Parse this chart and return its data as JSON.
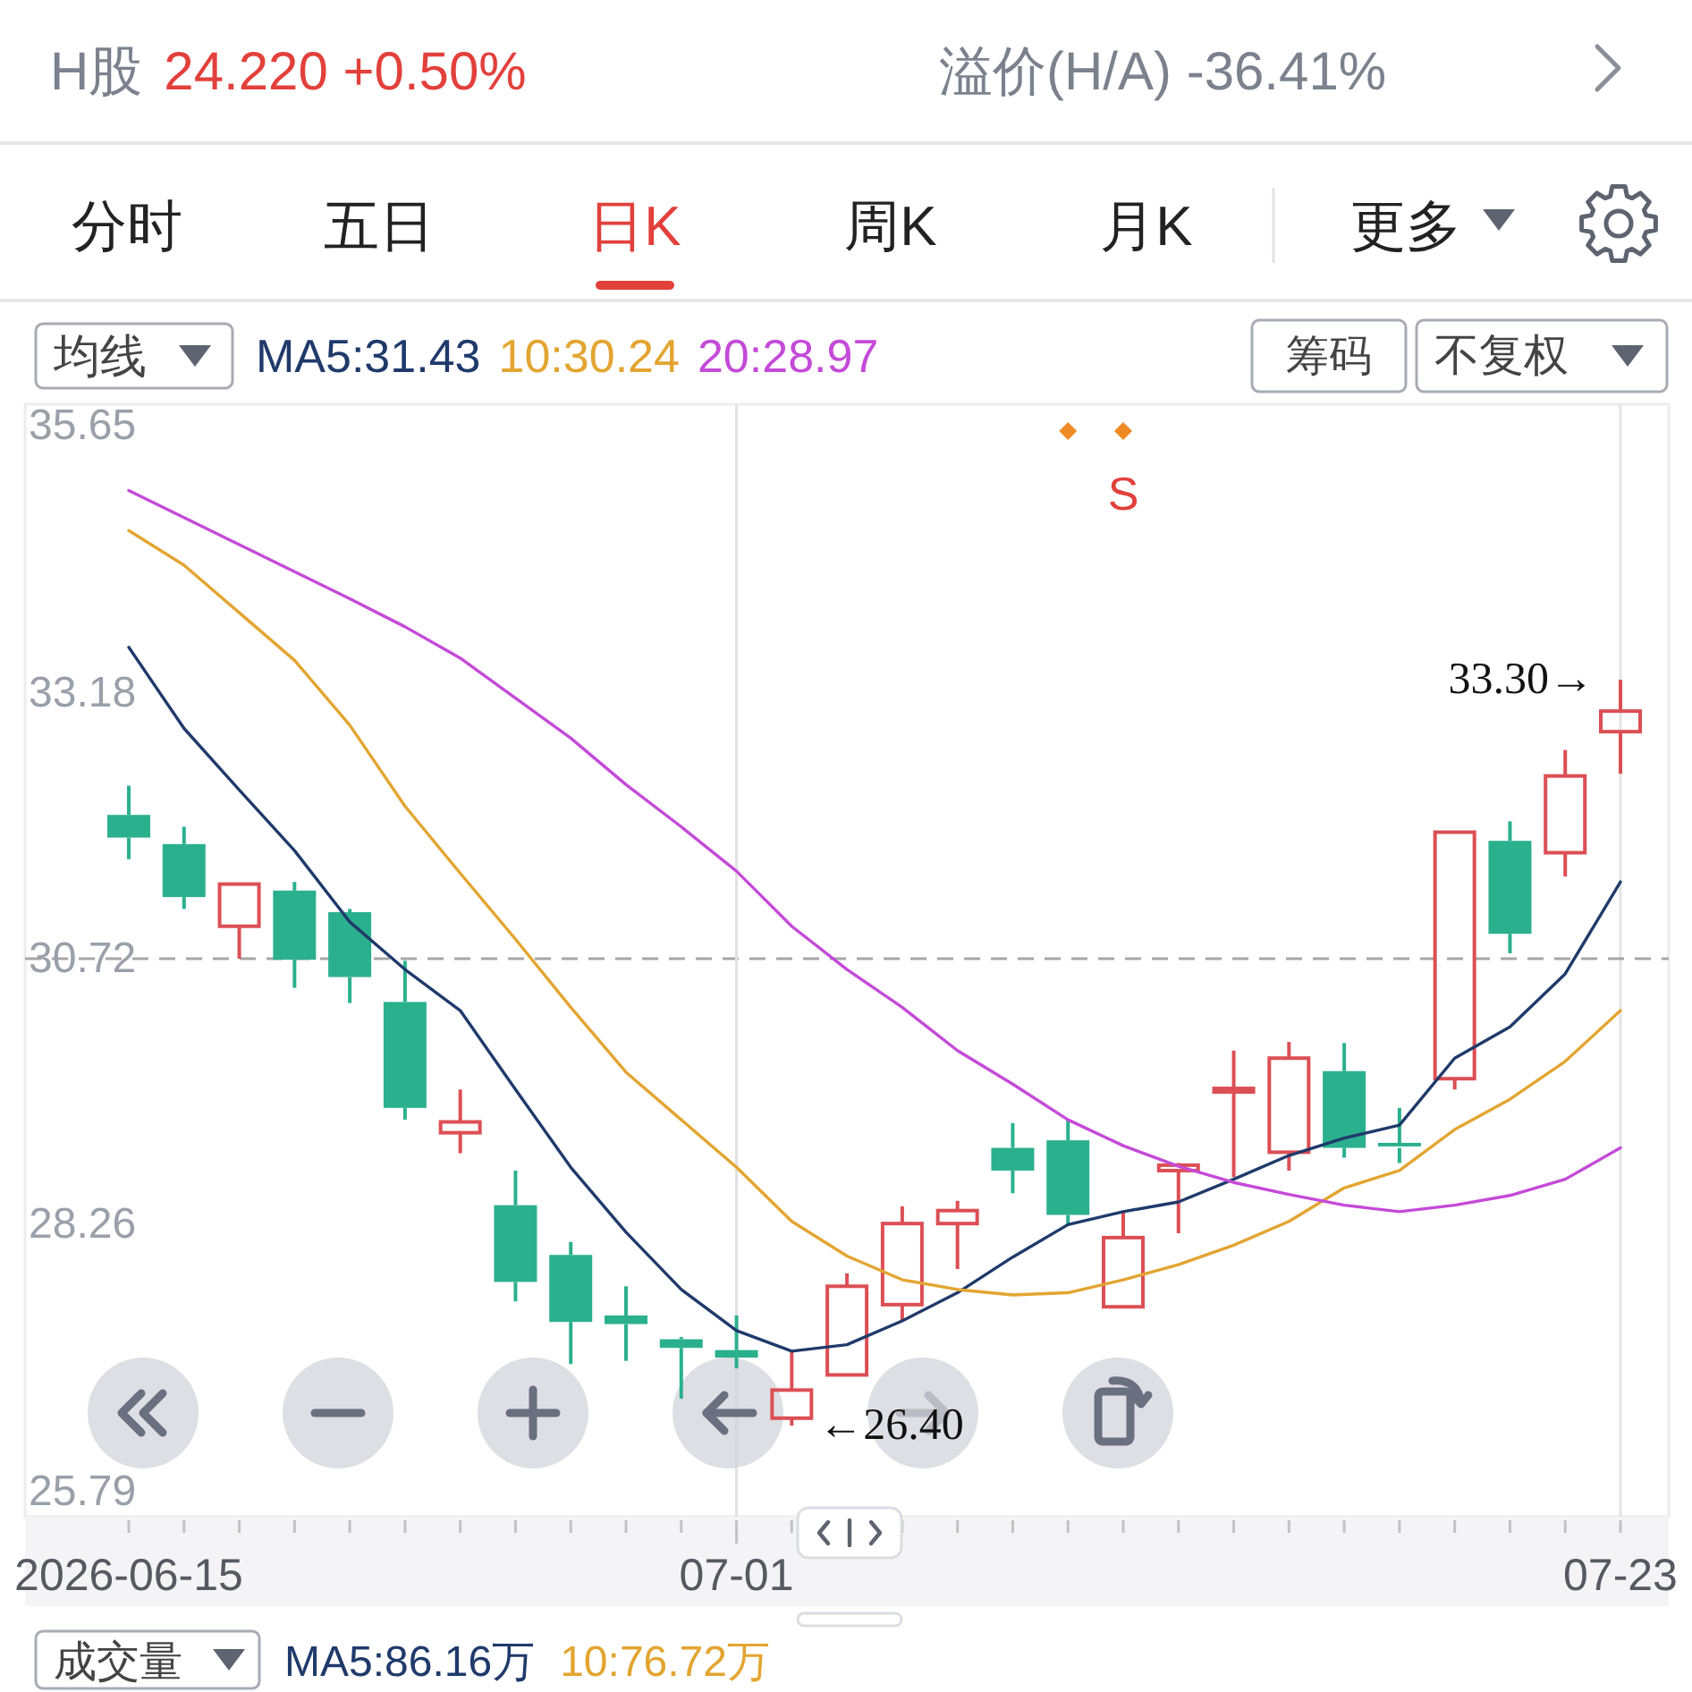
{
  "chart_data": {
    "type": "candlestick",
    "title": "H股",
    "subtitle": "24.220 +0.50%",
    "legend_title": "均线",
    "legend": "top left",
    "categories": [
      "2026-06-15",
      null,
      null,
      null,
      null,
      null,
      null,
      null,
      null,
      null,
      null,
      "07-01",
      null,
      null,
      null,
      null,
      null,
      null,
      null,
      null,
      null,
      null,
      null,
      null,
      null,
      null,
      null,
      "07-23"
    ],
    "ohlc": [
      [
        32.05,
        32.32,
        31.64,
        31.84
      ],
      [
        31.78,
        31.94,
        31.18,
        31.29
      ],
      [
        31.02,
        31.41,
        30.72,
        31.41
      ],
      [
        31.35,
        31.43,
        30.45,
        30.71
      ],
      [
        31.15,
        31.18,
        30.31,
        30.55
      ],
      [
        30.32,
        30.7,
        29.23,
        29.34
      ],
      [
        29.11,
        29.51,
        28.92,
        29.21
      ],
      [
        28.44,
        28.76,
        27.55,
        27.73
      ],
      [
        27.98,
        28.1,
        26.97,
        27.36
      ],
      [
        27.42,
        27.69,
        27.0,
        27.34
      ],
      [
        27.2,
        27.22,
        26.65,
        27.12
      ],
      [
        27.1,
        27.42,
        26.93,
        27.03
      ],
      [
        26.47,
        27.09,
        26.4,
        26.73
      ],
      [
        26.87,
        27.81,
        26.86,
        27.69
      ],
      [
        27.52,
        28.43,
        27.37,
        28.27
      ],
      [
        28.27,
        28.48,
        27.85,
        28.39
      ],
      [
        28.97,
        29.2,
        28.55,
        28.76
      ],
      [
        29.04,
        29.23,
        28.26,
        28.35
      ],
      [
        27.5,
        28.39,
        27.5,
        28.14
      ],
      [
        28.76,
        28.83,
        28.18,
        28.81
      ],
      [
        29.5,
        29.87,
        28.7,
        29.52
      ],
      [
        28.93,
        29.95,
        28.76,
        29.8
      ],
      [
        29.68,
        29.94,
        28.88,
        28.97
      ],
      [
        29.0,
        29.34,
        28.83,
        28.97
      ],
      [
        29.61,
        31.89,
        29.51,
        31.89
      ],
      [
        31.81,
        31.99,
        30.77,
        30.95
      ],
      [
        31.7,
        32.65,
        31.48,
        32.41
      ],
      [
        32.82,
        33.3,
        32.43,
        33.01
      ]
    ],
    "colors": [
      "#2bb08e",
      "#2bb08e",
      "#dc4f55",
      "#2bb08e",
      "#2bb08e",
      "#2bb08e",
      "#dc4f55",
      "#2bb08e",
      "#2bb08e",
      "#2bb08e",
      "#2bb08e",
      "#2bb08e",
      "#dc4f55",
      "#dc4f55",
      "#dc4f55",
      "#dc4f55",
      "#2bb08e",
      "#2bb08e",
      "#dc4f55",
      "#dc4f55",
      "#dc4f55",
      "#dc4f55",
      "#2bb08e",
      "#2bb08e",
      "#dc4f55",
      "#2bb08e",
      "#dc4f55",
      "#dc4f55"
    ],
    "series": [
      {
        "name": "MA5:31.43",
        "type": "line",
        "color": "#1f3a6b",
        "values": [
          33.6,
          32.85,
          32.28,
          31.72,
          31.06,
          30.62,
          30.24,
          29.51,
          28.79,
          28.19,
          27.66,
          27.28,
          27.09,
          27.15,
          27.37,
          27.63,
          27.96,
          28.26,
          28.38,
          28.47,
          28.68,
          28.9,
          29.06,
          29.18,
          29.8,
          30.09,
          30.58,
          31.43
        ]
      },
      {
        "name": "10:30.24",
        "type": "line",
        "color": "#e3a531",
        "values": [
          34.68,
          34.36,
          33.92,
          33.48,
          32.88,
          32.13,
          31.51,
          30.9,
          30.27,
          29.67,
          29.23,
          28.79,
          28.29,
          27.97,
          27.75,
          27.66,
          27.61,
          27.63,
          27.75,
          27.89,
          28.07,
          28.29,
          28.6,
          28.76,
          29.14,
          29.42,
          29.77,
          30.24
        ]
      },
      {
        "name": "20:28.97",
        "type": "line",
        "color": "#c44ad8",
        "values": [
          35.05,
          34.8,
          34.55,
          34.3,
          34.05,
          33.79,
          33.5,
          33.13,
          32.76,
          32.33,
          31.94,
          31.53,
          31.02,
          30.62,
          30.27,
          29.87,
          29.56,
          29.23,
          28.99,
          28.8,
          28.65,
          28.54,
          28.44,
          28.38,
          28.44,
          28.53,
          28.68,
          28.97
        ]
      }
    ],
    "ylim": [
      25.79,
      35.65
    ],
    "yticks": [
      35.65,
      33.18,
      30.72,
      28.26,
      25.79
    ],
    "ref_lines": [
      {
        "axis": "y",
        "value": 30.72,
        "color": "#a6a6a6",
        "line_style": "dashed"
      },
      {
        "axis": "x",
        "value": "07-01",
        "color": "#e2e2e2"
      }
    ],
    "annotations": [
      "溢价(H/A) -36.41%",
      "分时",
      "五日",
      "日K",
      "周K",
      "月K",
      "更多",
      "筹码",
      "不复权",
      "S",
      "33.30→",
      "←26.40",
      "成交量",
      "MA5:86.16万",
      "10:76.72万"
    ]
  }
}
